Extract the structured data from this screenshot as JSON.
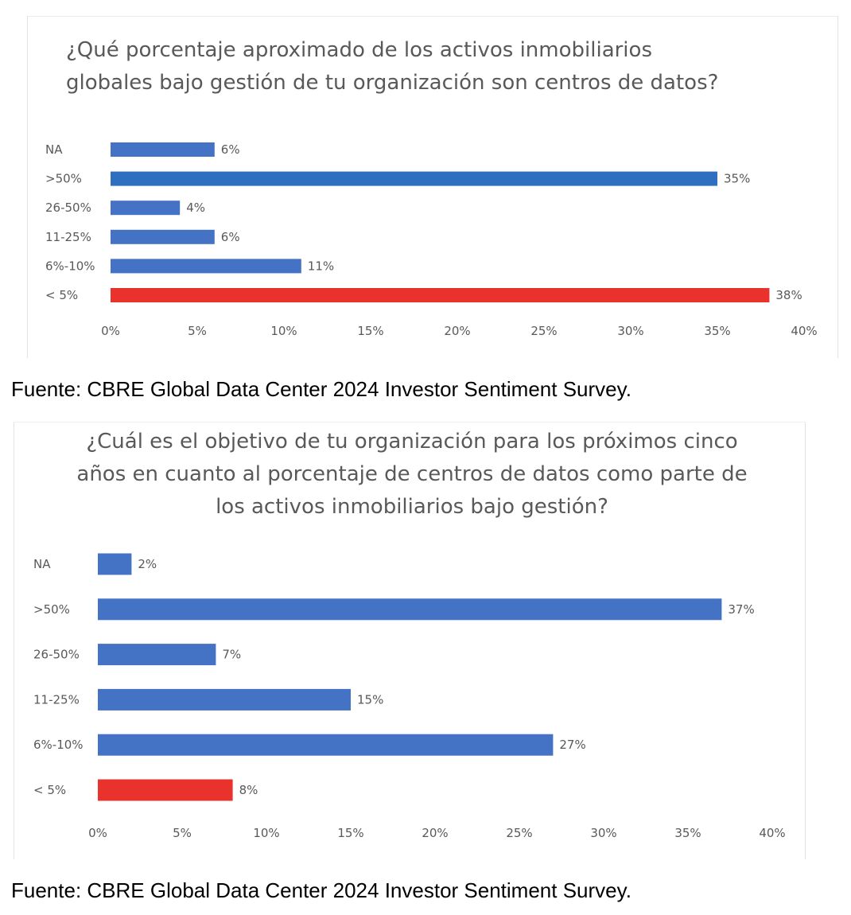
{
  "colors": {
    "bar_default": "#4472c4",
    "bar_highlight_red": "#e8322b",
    "bar_highlight_blue": "#2f6fc0",
    "text": "#595959"
  },
  "chart_data": [
    {
      "type": "bar",
      "orientation": "horizontal",
      "title": "¿Qué porcentaje aproximado de los activos inmobiliarios globales bajo gestión de tu organización son centros de datos?",
      "categories": [
        "NA",
        ">50%",
        "26-50%",
        "11-25%",
        "6%-10%",
        "< 5%"
      ],
      "values": [
        6,
        35,
        4,
        6,
        11,
        38
      ],
      "value_labels": [
        "6%",
        "35%",
        "4%",
        "6%",
        "11%",
        "38%"
      ],
      "bar_colors": [
        "#4472c4",
        "#2f6fc0",
        "#4472c4",
        "#4472c4",
        "#4472c4",
        "#e8322b"
      ],
      "xlim": [
        0,
        40
      ],
      "xticks": [
        "0%",
        "5%",
        "10%",
        "15%",
        "20%",
        "25%",
        "30%",
        "35%",
        "40%"
      ],
      "grid": false
    },
    {
      "type": "bar",
      "orientation": "horizontal",
      "title": "¿Cuál es el objetivo de tu organización para los próximos cinco años en cuanto al porcentaje de centros de datos como parte de los activos inmobiliarios bajo gestión?",
      "categories": [
        "NA",
        ">50%",
        "26-50%",
        "11-25%",
        "6%-10%",
        "< 5%"
      ],
      "values": [
        2,
        37,
        7,
        15,
        27,
        8
      ],
      "value_labels": [
        "2%",
        "37%",
        "7%",
        "15%",
        "27%",
        "8%"
      ],
      "bar_colors": [
        "#4472c4",
        "#4472c4",
        "#4472c4",
        "#4472c4",
        "#4472c4",
        "#e8322b"
      ],
      "xlim": [
        0,
        40
      ],
      "xticks": [
        "0%",
        "5%",
        "10%",
        "15%",
        "20%",
        "25%",
        "30%",
        "35%",
        "40%"
      ],
      "grid": false
    }
  ],
  "sources": [
    "Fuente: CBRE Global Data Center 2024 Investor Sentiment Survey.",
    "Fuente: CBRE Global Data Center 2024 Investor Sentiment Survey."
  ]
}
